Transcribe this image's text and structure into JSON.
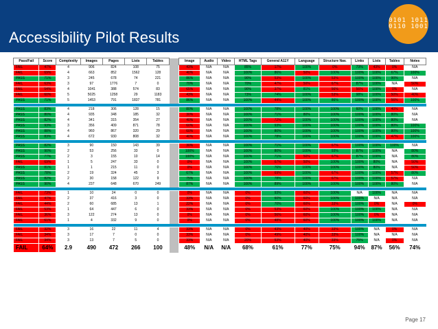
{
  "title": "Accessibility Pilot Results",
  "logo_text": "0101 1011 0110 1001",
  "page": "Page 17",
  "colors": {
    "pass": "#00b050",
    "fail": "#ff0000",
    "header": "#0a3f80",
    "separator": "#0096c8"
  },
  "columns": [
    "Pass/Fail",
    "Score",
    "Complexity",
    "Images",
    "Pages",
    "Lists",
    "Tables",
    "",
    "Image",
    "Audio",
    "Video",
    "HTML Tags",
    "General A11Y",
    "Language",
    "Structure Nav.",
    "Links",
    "Lists",
    "Tables",
    "Notes"
  ],
  "rows": [
    {
      "c": [
        "FAIL",
        "47%",
        "4",
        "906",
        "824",
        "108",
        "75",
        "",
        "43%",
        "N/A",
        "N/A",
        "85%",
        "17%",
        "100%",
        "0%",
        "73%",
        "43%",
        "0%",
        "N/A"
      ],
      "k": [
        "r",
        "r",
        "",
        "",
        "",
        "",
        "",
        "gap",
        "r",
        "",
        "",
        "g",
        "r",
        "g",
        "r",
        "g",
        "r",
        "r",
        ""
      ]
    },
    {
      "c": [
        "FAIL",
        "69%",
        "4",
        "663",
        "852",
        "1562",
        "128",
        "",
        "40%",
        "N/A",
        "N/A",
        "100%",
        "86%",
        "50%",
        "100%",
        "100%",
        "100%",
        "67%",
        "100%"
      ],
      "k": [
        "r",
        "r",
        "",
        "",
        "",
        "",
        "",
        "gap",
        "r",
        "",
        "",
        "g",
        "g",
        "r",
        "g",
        "g",
        "g",
        "g",
        "g"
      ]
    },
    {
      "c": [
        "PASS",
        "71%",
        "3",
        "245",
        "678",
        "74",
        "221",
        "",
        "86%",
        "N/A",
        "N/A",
        "90%",
        "53%",
        "100%",
        "53%",
        "100%",
        "100%",
        "90%",
        "N/A"
      ],
      "k": [
        "g",
        "g",
        "",
        "",
        "",
        "",
        "",
        "gap",
        "g",
        "",
        "",
        "g",
        "r",
        "g",
        "r",
        "g",
        "g",
        "g",
        ""
      ]
    },
    {
      "c": [
        "FAIL",
        "63%",
        "3",
        "97",
        "1776",
        "7",
        "0",
        "",
        "70%",
        "N/A",
        "N/A",
        "70%",
        "47%",
        "50%",
        "67%",
        "87%",
        "100%",
        "N/A",
        "50%"
      ],
      "k": [
        "r",
        "r",
        "",
        "",
        "",
        "",
        "",
        "gap",
        "g",
        "",
        "",
        "g",
        "r",
        "r",
        "r",
        "g",
        "g",
        "",
        "r"
      ]
    },
    {
      "c": [
        "FAIL",
        "54%",
        "4",
        "1041",
        "388",
        "574",
        "83",
        "",
        "65%",
        "N/A",
        "N/A",
        "90%",
        "37%",
        "81%",
        "56%",
        "56%",
        "100%",
        "0%",
        "N/A"
      ],
      "k": [
        "r",
        "r",
        "",
        "",
        "",
        "",
        "",
        "gap",
        "r",
        "",
        "",
        "g",
        "r",
        "g",
        "r",
        "r",
        "g",
        "r",
        ""
      ]
    },
    {
      "c": [
        "FAIL",
        "60%",
        "5",
        "5025",
        "1258",
        "29",
        "1183",
        "",
        "43%",
        "N/A",
        "N/A",
        "73%",
        "74%",
        "100%",
        "53%",
        "98%",
        "100%",
        "50%",
        "40%"
      ],
      "k": [
        "r",
        "r",
        "",
        "",
        "",
        "",
        "",
        "gap",
        "r",
        "",
        "",
        "g",
        "g",
        "g",
        "r",
        "g",
        "g",
        "r",
        "r"
      ]
    },
    {
      "c": [
        "PASS",
        "71%",
        "5",
        "1453",
        "791",
        "1837",
        "781",
        "",
        "86%",
        "N/A",
        "N/A",
        "100%",
        "44%",
        "100%",
        "86%",
        "100%",
        "100%",
        "56%",
        "100%"
      ],
      "k": [
        "g",
        "g",
        "",
        "",
        "",
        "",
        "",
        "gap",
        "g",
        "",
        "",
        "g",
        "r",
        "g",
        "g",
        "g",
        "g",
        "r",
        "g"
      ]
    },
    {
      "sep": true
    },
    {
      "c": [
        "PASS",
        "83%",
        "4",
        "218",
        "306",
        "128",
        "15",
        "",
        "80%",
        "N/A",
        "N/A",
        "100%",
        "78%",
        "100%",
        "100%",
        "60%",
        "100%",
        "40%",
        "N/A"
      ],
      "k": [
        "g",
        "g",
        "",
        "",
        "",
        "",
        "",
        "gap",
        "g",
        "",
        "",
        "g",
        "g",
        "g",
        "g",
        "g",
        "g",
        "r",
        ""
      ]
    },
    {
      "c": [
        "PASS",
        "80%",
        "4",
        "935",
        "348",
        "185",
        "32",
        "",
        "30%",
        "N/A",
        "N/A",
        "100%",
        "71%",
        "80%",
        "100%",
        "100%",
        "100%",
        "80%",
        "N/A"
      ],
      "k": [
        "g",
        "g",
        "",
        "",
        "",
        "",
        "",
        "gap",
        "r",
        "",
        "",
        "g",
        "g",
        "g",
        "g",
        "g",
        "g",
        "g",
        ""
      ]
    },
    {
      "c": [
        "PASS",
        "82%",
        "4",
        "341",
        "315",
        "354",
        "27",
        "",
        "40%",
        "N/A",
        "N/A",
        "100%",
        "72%",
        "100%",
        "100%",
        "100%",
        "100%",
        "80%",
        "N/A"
      ],
      "k": [
        "g",
        "g",
        "",
        "",
        "",
        "",
        "",
        "gap",
        "r",
        "",
        "",
        "g",
        "r",
        "g",
        "g",
        "g",
        "g",
        "g",
        ""
      ]
    },
    {
      "c": [
        "PASS",
        "93%",
        "3",
        "356",
        "409",
        "871",
        "78",
        "",
        "60%",
        "N/A",
        "N/A",
        "100%",
        "93%",
        "100%",
        "100%",
        "100%",
        "100%",
        "80%",
        "100%"
      ],
      "k": [
        "g",
        "g",
        "",
        "",
        "",
        "",
        "",
        "gap",
        "r",
        "",
        "",
        "g",
        "g",
        "g",
        "g",
        "g",
        "g",
        "g",
        "g"
      ]
    },
    {
      "c": [
        "PASS",
        "88%",
        "4",
        "960",
        "867",
        "320",
        "29",
        "",
        "60%",
        "N/A",
        "N/A",
        "100%",
        "80%",
        "100%",
        "100%",
        "100%",
        "100%",
        "80%",
        "100%"
      ],
      "k": [
        "g",
        "g",
        "",
        "",
        "",
        "",
        "",
        "gap",
        "r",
        "",
        "",
        "g",
        "g",
        "g",
        "g",
        "g",
        "g",
        "g",
        "g"
      ]
    },
    {
      "c": [
        "PASS",
        "83%",
        "4",
        "672",
        "930",
        "808",
        "32",
        "",
        "40%",
        "N/A",
        "N/A",
        "100%",
        "78%",
        "100%",
        "100%",
        "100%",
        "100%",
        "47%",
        "100%"
      ],
      "k": [
        "g",
        "g",
        "",
        "",
        "",
        "",
        "",
        "gap",
        "r",
        "",
        "",
        "g",
        "g",
        "g",
        "g",
        "g",
        "g",
        "r",
        "g"
      ]
    },
    {
      "sep": true
    },
    {
      "c": [
        "PASS",
        "82%",
        "3",
        "90",
        "150",
        "143",
        "39",
        "",
        "30%",
        "N/A",
        "N/A",
        "100%",
        "71%",
        "100%",
        "67%",
        "100%",
        "100%",
        "100%",
        "N/A"
      ],
      "k": [
        "g",
        "g",
        "",
        "",
        "",
        "",
        "",
        "gap",
        "r",
        "",
        "",
        "g",
        "g",
        "g",
        "r",
        "g",
        "g",
        "g",
        ""
      ]
    },
    {
      "c": [
        "PASS",
        "90%",
        "2",
        "53",
        "256",
        "33",
        "0",
        "",
        "100%",
        "N/A",
        "N/A",
        "100%",
        "80%",
        "100%",
        "93%",
        "87%",
        "100%",
        "N/A",
        "80%"
      ],
      "k": [
        "g",
        "g",
        "",
        "",
        "",
        "",
        "",
        "gap",
        "g",
        "",
        "",
        "g",
        "g",
        "g",
        "g",
        "g",
        "g",
        "",
        "g"
      ]
    },
    {
      "c": [
        "PASS",
        "77%",
        "2",
        "3",
        "155",
        "10",
        "14",
        "",
        "100%",
        "N/A",
        "N/A",
        "100%",
        "71%",
        "50%",
        "67%",
        "87%",
        "100%",
        "N/A",
        "80%"
      ],
      "k": [
        "g",
        "g",
        "",
        "",
        "",
        "",
        "",
        "gap",
        "g",
        "",
        "",
        "g",
        "g",
        "r",
        "r",
        "g",
        "g",
        "",
        "g"
      ]
    },
    {
      "c": [
        "FAIL",
        "69%",
        "1",
        "5",
        "247",
        "33",
        "0",
        "",
        "0%",
        "N/A",
        "N/A",
        "100%",
        "67%",
        "50%",
        "100%",
        "100%",
        "80%",
        "N/A",
        "50%"
      ],
      "k": [
        "r",
        "r",
        "",
        "",
        "",
        "",
        "",
        "gap",
        "r",
        "",
        "",
        "g",
        "r",
        "r",
        "g",
        "g",
        "g",
        "",
        "r"
      ]
    },
    {
      "c": [
        "PASS",
        "81%",
        "1",
        "1",
        "215",
        "11",
        "0",
        "",
        "0%",
        "N/A",
        "N/A",
        "100%",
        "76%",
        "100%",
        "100%",
        "100%",
        "80%",
        "N/A",
        "50%"
      ],
      "k": [
        "g",
        "g",
        "",
        "",
        "",
        "",
        "",
        "gap",
        "r",
        "",
        "",
        "g",
        "g",
        "g",
        "g",
        "g",
        "g",
        "",
        "r"
      ]
    },
    {
      "c": [
        "PASS",
        "78%",
        "2",
        "19",
        "324",
        "45",
        "3",
        "",
        "67%",
        "N/A",
        "N/A",
        "100%",
        "69%",
        "100%",
        "67%",
        "100%",
        "100%",
        "57%",
        "80%"
      ],
      "k": [
        "g",
        "g",
        "",
        "",
        "",
        "",
        "",
        "gap",
        "g",
        "",
        "",
        "g",
        "r",
        "g",
        "r",
        "g",
        "g",
        "r",
        "g"
      ]
    },
    {
      "c": [
        "PASS",
        "82%",
        "2",
        "30",
        "158",
        "122",
        "9",
        "",
        "75%",
        "N/A",
        "N/A",
        "100%",
        "78%",
        "100%",
        "67%",
        "100%",
        "100%",
        "57%",
        "N/A"
      ],
      "k": [
        "g",
        "g",
        "",
        "",
        "",
        "",
        "",
        "gap",
        "g",
        "",
        "",
        "g",
        "g",
        "g",
        "r",
        "g",
        "g",
        "r",
        ""
      ]
    },
    {
      "c": [
        "PASS",
        "90%",
        "4",
        "237",
        "648",
        "670",
        "249",
        "",
        "87%",
        "N/A",
        "N/A",
        "100%",
        "89%",
        "100%",
        "100%",
        "100%",
        "100%",
        "80%",
        "N/A"
      ],
      "k": [
        "g",
        "g",
        "",
        "",
        "",
        "",
        "",
        "gap",
        "g",
        "",
        "",
        "g",
        "g",
        "g",
        "g",
        "g",
        "g",
        "g",
        ""
      ]
    },
    {
      "sep": true
    },
    {
      "c": [
        "FAIL",
        "73%",
        "1",
        "10",
        "24",
        "0",
        "0",
        "",
        "0%",
        "N/A",
        "N/A",
        "0%",
        "93%",
        "60%",
        "100%",
        "N/A",
        "100%",
        "N/A",
        "N/A"
      ],
      "k": [
        "r",
        "r",
        "",
        "",
        "",
        "",
        "",
        "gap",
        "r",
        "",
        "",
        "r",
        "g",
        "r",
        "g",
        "",
        "g",
        "",
        ""
      ]
    },
    {
      "c": [
        "FAIL",
        "47%",
        "2",
        "37",
        "416",
        "3",
        "0",
        "",
        "33%",
        "N/A",
        "N/A",
        "0%",
        "60%",
        "60%",
        "100%",
        "100%",
        "N/A",
        "N/A",
        "N/A"
      ],
      "k": [
        "r",
        "r",
        "",
        "",
        "",
        "",
        "",
        "gap",
        "r",
        "",
        "",
        "r",
        "g",
        "r",
        "g",
        "g",
        "",
        "",
        ""
      ]
    },
    {
      "c": [
        "FAIL",
        "44%",
        "2",
        "60",
        "685",
        "13",
        "1",
        "",
        "22%",
        "N/A",
        "N/A",
        "0%",
        "70%",
        "60%",
        "33%",
        "100%",
        "0%",
        "N/A",
        "0%"
      ],
      "k": [
        "r",
        "r",
        "",
        "",
        "",
        "",
        "",
        "gap",
        "r",
        "",
        "",
        "r",
        "g",
        "r",
        "r",
        "g",
        "r",
        "",
        "r"
      ]
    },
    {
      "c": [
        "FAIL",
        "53%",
        "1",
        "64",
        "447",
        "6",
        "0",
        "",
        "33%",
        "N/A",
        "N/A",
        "0%",
        "53%",
        "60%",
        "100%",
        "100%",
        "100%",
        "N/A",
        "N/A"
      ],
      "k": [
        "r",
        "r",
        "",
        "",
        "",
        "",
        "",
        "gap",
        "r",
        "",
        "",
        "r",
        "r",
        "r",
        "g",
        "g",
        "g",
        "",
        ""
      ]
    },
    {
      "c": [
        "FAIL",
        "36%",
        "3",
        "122",
        "274",
        "13",
        "0",
        "",
        "0%",
        "N/A",
        "N/A",
        "0%",
        "56%",
        "60%",
        "100%",
        "100%",
        "0%",
        "N/A",
        "N/A"
      ],
      "k": [
        "r",
        "r",
        "",
        "",
        "",
        "",
        "",
        "gap",
        "r",
        "",
        "",
        "r",
        "r",
        "r",
        "g",
        "g",
        "r",
        "",
        ""
      ]
    },
    {
      "c": [
        "FAIL",
        "61%",
        "1",
        "4",
        "332",
        "9",
        "0",
        "",
        "0%",
        "N/A",
        "N/A",
        "0%",
        "48%",
        "60%",
        "100%",
        "100%",
        "100%",
        "N/A",
        "N/A"
      ],
      "k": [
        "r",
        "r",
        "",
        "",
        "",
        "",
        "",
        "gap",
        "r",
        "",
        "",
        "r",
        "r",
        "r",
        "g",
        "g",
        "g",
        "",
        ""
      ]
    },
    {
      "sep": true
    },
    {
      "c": [
        "FAIL",
        "32%",
        "3",
        "16",
        "22",
        "11",
        "4",
        "",
        "33%",
        "N/A",
        "N/A",
        "0%",
        "43%",
        "40%",
        "33%",
        "100%",
        "N/A",
        "0%",
        "N/A"
      ],
      "k": [
        "r",
        "r",
        "",
        "",
        "",
        "",
        "",
        "gap",
        "r",
        "",
        "",
        "r",
        "r",
        "r",
        "r",
        "g",
        "",
        "r",
        ""
      ]
    },
    {
      "c": [
        "FAIL",
        "34%",
        "3",
        "17",
        "7",
        "0",
        "0",
        "",
        "33%",
        "N/A",
        "N/A",
        "0%",
        "49%",
        "40%",
        "33%",
        "100%",
        "N/A",
        "N/A",
        "N/A"
      ],
      "k": [
        "r",
        "r",
        "",
        "",
        "",
        "",
        "",
        "gap",
        "r",
        "",
        "",
        "r",
        "r",
        "r",
        "r",
        "g",
        "",
        "",
        ""
      ]
    },
    {
      "c": [
        "FAIL",
        "34%",
        "3",
        "13",
        "7",
        "5",
        "0",
        "",
        "33%",
        "N/A",
        "N/A",
        "20%",
        "53%",
        "40%",
        "33%",
        "75%",
        "N/A",
        "0%",
        "N/A"
      ],
      "k": [
        "r",
        "r",
        "",
        "",
        "",
        "",
        "",
        "gap",
        "r",
        "",
        "",
        "r",
        "r",
        "r",
        "r",
        "g",
        "",
        "r",
        ""
      ]
    },
    {
      "last": true,
      "c": [
        "FAIL",
        "64%",
        "2.9",
        "490",
        "472",
        "266",
        "100",
        "",
        "48%",
        "N/A",
        "N/A",
        "68%",
        "61%",
        "77%",
        "75%",
        "94%",
        "87%",
        "56%",
        "74%"
      ],
      "k": [
        "r",
        "r",
        "",
        "",
        "",
        "",
        "",
        "gap",
        "",
        "",
        "",
        "",
        "",
        "",
        "",
        "",
        "",
        "",
        ""
      ]
    }
  ]
}
